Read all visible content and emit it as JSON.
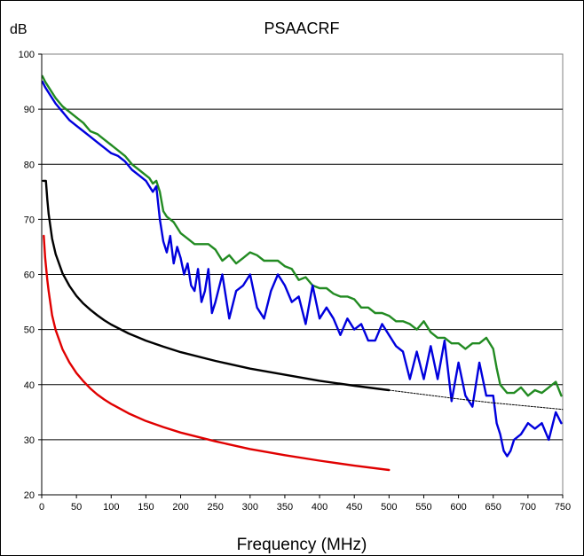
{
  "chart_data": {
    "type": "line",
    "title": "PSAACRF",
    "ylabel": "dB",
    "xlabel": "Frequency (MHz)",
    "xlim": [
      0,
      750
    ],
    "ylim": [
      20,
      100
    ],
    "x_ticks": [
      0,
      50,
      100,
      150,
      200,
      250,
      300,
      350,
      400,
      450,
      500,
      550,
      600,
      650,
      700,
      750
    ],
    "y_ticks": [
      20,
      30,
      40,
      50,
      60,
      70,
      80,
      90,
      100
    ],
    "grid": "horizontal",
    "legend": "none",
    "series": [
      {
        "color": "#228b22",
        "style": "solid",
        "x": [
          1,
          5,
          10,
          20,
          30,
          40,
          50,
          60,
          70,
          80,
          90,
          100,
          110,
          120,
          130,
          140,
          150,
          155,
          160,
          165,
          170,
          175,
          180,
          190,
          200,
          210,
          220,
          230,
          240,
          250,
          260,
          270,
          280,
          290,
          300,
          310,
          320,
          330,
          340,
          350,
          360,
          370,
          380,
          390,
          400,
          410,
          420,
          430,
          440,
          450,
          460,
          470,
          480,
          490,
          500,
          510,
          520,
          530,
          540,
          550,
          560,
          570,
          580,
          590,
          600,
          610,
          620,
          630,
          640,
          650,
          655,
          660,
          670,
          680,
          690,
          700,
          710,
          720,
          730,
          740,
          748
        ],
        "y": [
          96,
          95,
          94,
          92,
          90.5,
          89.5,
          88.5,
          87.5,
          86,
          85.5,
          84.5,
          83.5,
          82.5,
          81.5,
          80,
          79,
          78,
          77.5,
          76.5,
          77,
          75,
          71.5,
          70.5,
          69.5,
          67.5,
          66.5,
          65.5,
          65.5,
          65.5,
          64.5,
          62.5,
          63.5,
          62,
          63,
          64,
          63.5,
          62.5,
          62.5,
          62.5,
          61.5,
          61,
          59,
          59.5,
          58,
          57.5,
          57.5,
          56.5,
          56,
          56,
          55.5,
          54,
          54,
          53,
          53,
          52.5,
          51.5,
          51.5,
          51,
          50,
          51.5,
          49.5,
          48.5,
          48.5,
          47.5,
          47.5,
          46.5,
          47.5,
          47.5,
          48.5,
          46.5,
          43,
          40,
          38.5,
          38.5,
          39.5,
          38,
          39,
          38.5,
          39.5,
          40.5,
          38
        ]
      },
      {
        "color": "#0000dd",
        "style": "solid",
        "x": [
          1,
          5,
          10,
          20,
          30,
          40,
          50,
          60,
          70,
          80,
          90,
          100,
          110,
          120,
          130,
          140,
          150,
          155,
          160,
          165,
          170,
          175,
          180,
          185,
          190,
          195,
          200,
          205,
          210,
          215,
          220,
          225,
          230,
          235,
          240,
          245,
          250,
          260,
          270,
          280,
          290,
          300,
          310,
          320,
          330,
          340,
          350,
          360,
          370,
          380,
          390,
          400,
          410,
          420,
          430,
          440,
          450,
          460,
          470,
          480,
          490,
          500,
          510,
          520,
          530,
          540,
          550,
          560,
          570,
          580,
          590,
          600,
          610,
          620,
          630,
          640,
          650,
          655,
          660,
          665,
          670,
          675,
          680,
          690,
          700,
          710,
          720,
          730,
          740,
          748
        ],
        "y": [
          95,
          94,
          93,
          91,
          89.5,
          88,
          87,
          86,
          85,
          84,
          83,
          82,
          81.5,
          80.5,
          79,
          78,
          77,
          76,
          75,
          76,
          70,
          66,
          64,
          67,
          62,
          65,
          63,
          60,
          62,
          58,
          57,
          61,
          55,
          57,
          61,
          53,
          55,
          60,
          52,
          57,
          58,
          60,
          54,
          52,
          57,
          60,
          58,
          55,
          56,
          51,
          58,
          52,
          54,
          52,
          49,
          52,
          50,
          51,
          48,
          48,
          51,
          49,
          47,
          46,
          41,
          46,
          41,
          47,
          41,
          48,
          37,
          44,
          38,
          36,
          44,
          38,
          38,
          33,
          31,
          28,
          27,
          28,
          30,
          31,
          33,
          32,
          33,
          30,
          35,
          33
        ]
      },
      {
        "color": "#000000",
        "style": "solid",
        "x": [
          2,
          6,
          6.5,
          8,
          10,
          15,
          20,
          30,
          40,
          50,
          60,
          70,
          80,
          90,
          100,
          125,
          150,
          175,
          200,
          250,
          300,
          350,
          400,
          450,
          500
        ],
        "y": [
          77,
          77,
          76.2,
          73.6,
          71,
          66.5,
          63.7,
          60.2,
          57.9,
          56.1,
          54.7,
          53.6,
          52.6,
          51.7,
          50.9,
          49.3,
          48,
          46.9,
          45.9,
          44.3,
          42.9,
          41.8,
          40.7,
          39.8,
          39
        ]
      },
      {
        "color": "#000000",
        "style": "dotted",
        "x": [
          500,
          550,
          600,
          650,
          700,
          750
        ],
        "y": [
          39,
          38.2,
          37.4,
          36.7,
          36.1,
          35.5
        ]
      },
      {
        "color": "#e00000",
        "style": "solid",
        "x": [
          3,
          5,
          8,
          10,
          15,
          20,
          30,
          40,
          50,
          60,
          70,
          80,
          90,
          100,
          125,
          150,
          175,
          200,
          250,
          300,
          350,
          400,
          450,
          500
        ],
        "y": [
          67,
          63,
          59,
          57,
          52.6,
          49.9,
          46.4,
          44,
          42.1,
          40.6,
          39.3,
          38.2,
          37.3,
          36.5,
          34.8,
          33.4,
          32.3,
          31.3,
          29.7,
          28.3,
          27.2,
          26.2,
          25.3,
          24.5
        ]
      }
    ]
  }
}
